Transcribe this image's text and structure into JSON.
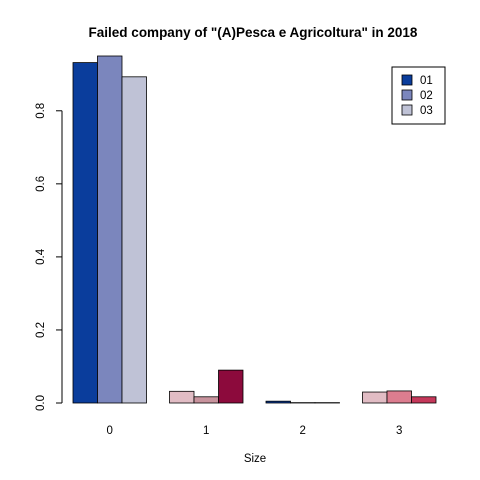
{
  "chart_data": {
    "type": "bar",
    "title": "Failed company of  \"(A)Pesca e Agricoltura\" in 2018",
    "xlabel": "Size",
    "ylabel": "",
    "categories": [
      "0",
      "1",
      "2",
      "3"
    ],
    "yticks": [
      "0.0",
      "0.2",
      "0.4",
      "0.6",
      "0.8"
    ],
    "ylim": [
      0,
      0.95
    ],
    "legend_position": "top-right",
    "legend": [
      "01",
      "02",
      "03"
    ],
    "legend_colors": [
      "#0a3d9c",
      "#7b86bd",
      "#bfc2d6"
    ],
    "series": [
      {
        "name": "01",
        "values": [
          0.932,
          0.032,
          0.005,
          0.03
        ]
      },
      {
        "name": "02",
        "values": [
          0.95,
          0.017,
          0.001,
          0.033
        ]
      },
      {
        "name": "03",
        "values": [
          0.893,
          0.09,
          0.001,
          0.017
        ]
      }
    ],
    "bar_colors": [
      [
        "#0a3d9c",
        "#7b86bd",
        "#bfc2d6"
      ],
      [
        "#e1bcc4",
        "#c8939d",
        "#8c0a3c"
      ],
      [
        "#0a3d9c",
        "#7b86bd",
        "#bfc2d6"
      ],
      [
        "#e1bcc4",
        "#dc7d8f",
        "#c5385a"
      ]
    ]
  }
}
